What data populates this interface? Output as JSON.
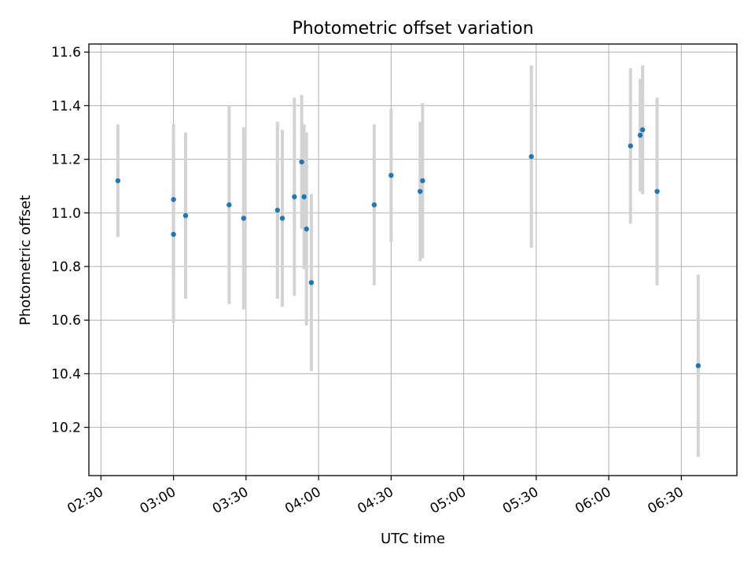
{
  "chart_data": {
    "type": "scatter",
    "title": "Photometric offset variation",
    "xlabel": "UTC time",
    "ylabel": "Photometric offset",
    "x_tick_labels": [
      "02:30",
      "03:00",
      "03:30",
      "04:00",
      "04:30",
      "05:00",
      "05:30",
      "06:00",
      "06:30"
    ],
    "y_tick_labels": [
      "10.2",
      "10.4",
      "10.6",
      "10.8",
      "11.0",
      "11.2",
      "11.4",
      "11.6"
    ],
    "y_ticks": [
      10.2,
      10.4,
      10.6,
      10.8,
      11.0,
      11.2,
      11.4,
      11.6
    ],
    "xlim": [
      "02:25",
      "06:53"
    ],
    "ylim": [
      10.02,
      11.63
    ],
    "grid": true,
    "point_color": "#1f77b4",
    "errorbar_color": "#d3d3d3",
    "points": [
      {
        "x": "02:37",
        "y": 11.12,
        "err": 0.21
      },
      {
        "x": "03:00",
        "y": 11.05,
        "err": 0.28
      },
      {
        "x": "03:00",
        "y": 10.92,
        "err": 0.33
      },
      {
        "x": "03:05",
        "y": 10.99,
        "err": 0.31
      },
      {
        "x": "03:23",
        "y": 11.03,
        "err": 0.37
      },
      {
        "x": "03:29",
        "y": 10.98,
        "err": 0.34
      },
      {
        "x": "03:43",
        "y": 11.01,
        "err": 0.33
      },
      {
        "x": "03:45",
        "y": 10.98,
        "err": 0.33
      },
      {
        "x": "03:50",
        "y": 11.06,
        "err": 0.37
      },
      {
        "x": "03:53",
        "y": 11.19,
        "err": 0.25
      },
      {
        "x": "03:54",
        "y": 11.06,
        "err": 0.27
      },
      {
        "x": "03:55",
        "y": 10.94,
        "err": 0.36
      },
      {
        "x": "03:57",
        "y": 10.74,
        "err": 0.33
      },
      {
        "x": "04:23",
        "y": 11.03,
        "err": 0.3
      },
      {
        "x": "04:30",
        "y": 11.14,
        "err": 0.25
      },
      {
        "x": "04:42",
        "y": 11.08,
        "err": 0.26
      },
      {
        "x": "04:43",
        "y": 11.12,
        "err": 0.29
      },
      {
        "x": "05:28",
        "y": 11.21,
        "err": 0.34
      },
      {
        "x": "06:09",
        "y": 11.25,
        "err": 0.29
      },
      {
        "x": "06:13",
        "y": 11.29,
        "err": 0.21
      },
      {
        "x": "06:14",
        "y": 11.31,
        "err": 0.24
      },
      {
        "x": "06:20",
        "y": 11.08,
        "err": 0.35
      },
      {
        "x": "06:37",
        "y": 10.43,
        "err": 0.34
      }
    ]
  }
}
